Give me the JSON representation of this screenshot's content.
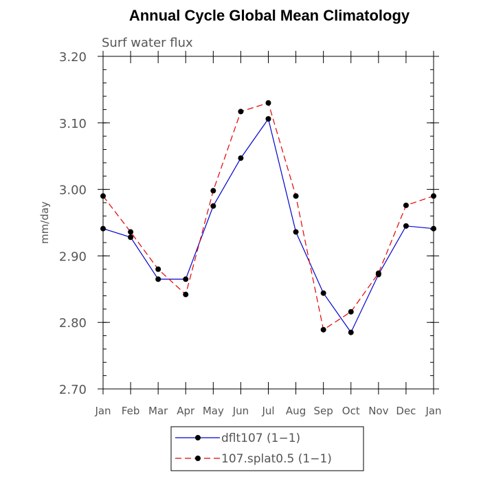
{
  "chart_data": {
    "type": "line",
    "title": "Annual Cycle Global Mean Climatology",
    "subtitle": "Surf water flux",
    "ylabel": "mm/day",
    "xlabel": "",
    "ylim": [
      2.7,
      3.2
    ],
    "yticks": [
      "2.70",
      "2.80",
      "2.90",
      "3.00",
      "3.10",
      "3.20"
    ],
    "categories": [
      "Jan",
      "Feb",
      "Mar",
      "Apr",
      "May",
      "Jun",
      "Jul",
      "Aug",
      "Sep",
      "Oct",
      "Nov",
      "Dec",
      "Jan"
    ],
    "legend_position": "bottom-center",
    "series": [
      {
        "name": "dflt107 (1−1)",
        "color": "#0000cc",
        "line_style": "solid",
        "values": [
          2.941,
          2.928,
          2.865,
          2.865,
          2.975,
          3.047,
          3.106,
          2.936,
          2.844,
          2.785,
          2.872,
          2.945,
          2.941
        ]
      },
      {
        "name": "107.splat0.5 (1−1)",
        "color": "#e00000",
        "line_style": "dashed",
        "values": [
          2.99,
          2.936,
          2.88,
          2.842,
          2.998,
          3.117,
          3.13,
          2.99,
          2.789,
          2.816,
          2.874,
          2.976,
          2.99
        ]
      }
    ]
  }
}
